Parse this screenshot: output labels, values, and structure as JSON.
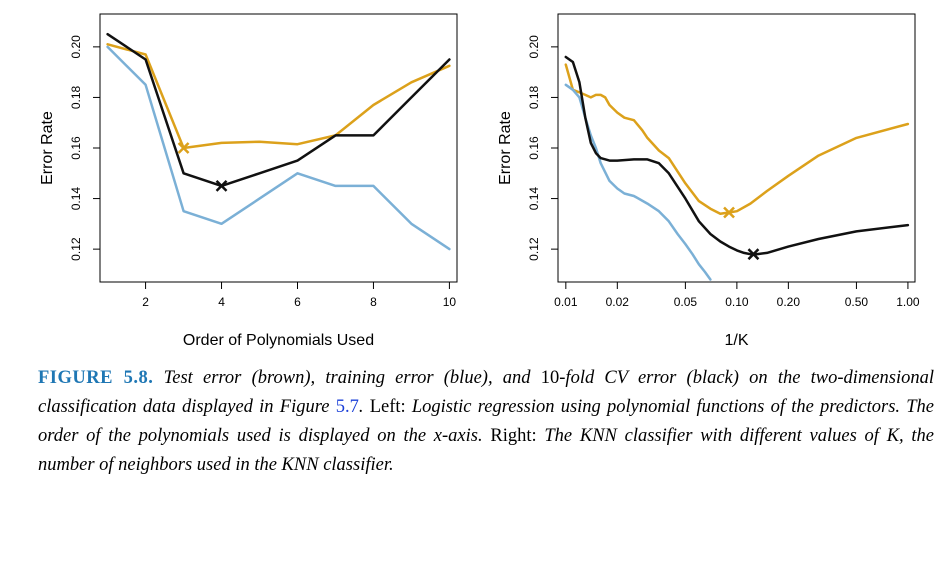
{
  "colors": {
    "test": "#dca11b",
    "train": "#7bb0d6",
    "cv": "#111111"
  },
  "chart_data": [
    {
      "type": "line",
      "xlabel": "Order of Polynomials Used",
      "ylabel": "Error Rate",
      "xscale": "linear",
      "xlim": [
        0.8,
        10.2
      ],
      "ylim": [
        0.107,
        0.213
      ],
      "xticks": [
        2,
        4,
        6,
        8,
        10
      ],
      "xtick_labels": [
        "2",
        "4",
        "6",
        "8",
        "10"
      ],
      "yticks": [
        0.12,
        0.14,
        0.16,
        0.18,
        0.2
      ],
      "ytick_labels": [
        "0.12",
        "0.14",
        "0.16",
        "0.18",
        "0.20"
      ],
      "grid": false,
      "series": [
        {
          "color_key": "test",
          "x": [
            1,
            2,
            3,
            4,
            5,
            6,
            7,
            8,
            9,
            10
          ],
          "y": [
            0.201,
            0.197,
            0.16,
            0.162,
            0.1625,
            0.1615,
            0.165,
            0.177,
            0.186,
            0.1925
          ]
        },
        {
          "color_key": "train",
          "x": [
            1,
            2,
            3,
            4,
            5,
            6,
            7,
            8,
            9,
            10
          ],
          "y": [
            0.2,
            0.185,
            0.135,
            0.13,
            0.14,
            0.15,
            0.145,
            0.145,
            0.13,
            0.12
          ]
        },
        {
          "color_key": "cv",
          "x": [
            1,
            2,
            3,
            4,
            5,
            6,
            7,
            8,
            9,
            10
          ],
          "y": [
            0.205,
            0.195,
            0.15,
            0.145,
            0.15,
            0.155,
            0.165,
            0.165,
            0.18,
            0.195
          ]
        }
      ],
      "minima": [
        {
          "color_key": "test",
          "x": 3,
          "y": 0.16
        },
        {
          "color_key": "cv",
          "x": 4,
          "y": 0.145
        }
      ]
    },
    {
      "type": "line",
      "xlabel": "1/K",
      "ylabel": "Error Rate",
      "xscale": "log",
      "xlim": [
        0.009,
        1.1
      ],
      "ylim": [
        0.107,
        0.213
      ],
      "xticks": [
        0.01,
        0.02,
        0.05,
        0.1,
        0.2,
        0.5,
        1.0
      ],
      "xtick_labels": [
        "0.01",
        "0.02",
        "0.05",
        "0.10",
        "0.20",
        "0.50",
        "1.00"
      ],
      "yticks": [
        0.12,
        0.14,
        0.16,
        0.18,
        0.2
      ],
      "ytick_labels": [
        "0.12",
        "0.14",
        "0.16",
        "0.18",
        "0.20"
      ],
      "grid": false,
      "series": [
        {
          "color_key": "test",
          "x": [
            0.01,
            0.011,
            0.012,
            0.013,
            0.014,
            0.015,
            0.016,
            0.017,
            0.018,
            0.02,
            0.022,
            0.025,
            0.028,
            0.03,
            0.035,
            0.04,
            0.05,
            0.06,
            0.07,
            0.08,
            0.09,
            0.1,
            0.12,
            0.15,
            0.2,
            0.3,
            0.5,
            1.0
          ],
          "y": [
            0.193,
            0.183,
            0.182,
            0.181,
            0.18,
            0.181,
            0.181,
            0.18,
            0.177,
            0.174,
            0.172,
            0.171,
            0.167,
            0.164,
            0.159,
            0.156,
            0.146,
            0.139,
            0.136,
            0.134,
            0.1345,
            0.135,
            0.138,
            0.143,
            0.149,
            0.157,
            0.164,
            0.1695
          ]
        },
        {
          "color_key": "train",
          "x": [
            0.01,
            0.011,
            0.012,
            0.013,
            0.014,
            0.015,
            0.016,
            0.018,
            0.02,
            0.022,
            0.025,
            0.03,
            0.035,
            0.04,
            0.045,
            0.05,
            0.055,
            0.06,
            0.065,
            0.07
          ],
          "y": [
            0.185,
            0.183,
            0.18,
            0.172,
            0.165,
            0.16,
            0.154,
            0.147,
            0.144,
            0.142,
            0.141,
            0.138,
            0.135,
            0.131,
            0.126,
            0.122,
            0.118,
            0.114,
            0.111,
            0.108
          ]
        },
        {
          "color_key": "cv",
          "x": [
            0.01,
            0.011,
            0.012,
            0.013,
            0.014,
            0.015,
            0.016,
            0.018,
            0.02,
            0.025,
            0.03,
            0.035,
            0.04,
            0.05,
            0.06,
            0.07,
            0.08,
            0.09,
            0.1,
            0.11,
            0.12,
            0.13,
            0.15,
            0.2,
            0.3,
            0.5,
            1.0
          ],
          "y": [
            0.196,
            0.194,
            0.186,
            0.172,
            0.162,
            0.158,
            0.156,
            0.155,
            0.155,
            0.1555,
            0.1555,
            0.154,
            0.15,
            0.14,
            0.131,
            0.126,
            0.123,
            0.121,
            0.1195,
            0.1185,
            0.118,
            0.118,
            0.1185,
            0.121,
            0.124,
            0.127,
            0.1295
          ]
        }
      ],
      "minima": [
        {
          "color_key": "test",
          "x": 0.09,
          "y": 0.1345
        },
        {
          "color_key": "cv",
          "x": 0.125,
          "y": 0.118
        }
      ]
    }
  ],
  "caption": {
    "label": "FIGURE 5.8.",
    "seg1": " Test error (brown), training error (blue), and ",
    "seg2": "10",
    "seg3": "-fold CV error (black) on the two-dimensional classification data displayed in Figure ",
    "figref": "5.7",
    "seg4": ". ",
    "left": "Left:",
    "seg5": " Logistic regression using polynomial functions of the predictors. The order of the polynomials used is displayed on the x-axis. ",
    "right": "Right:",
    "seg6": " The KNN classifier with different values of K, the number of neighbors used in the KNN classifier."
  }
}
